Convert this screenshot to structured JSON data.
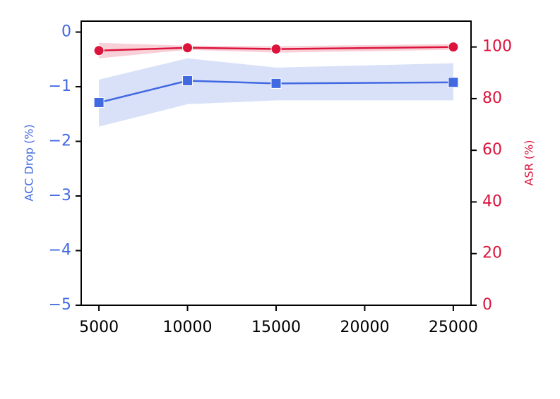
{
  "chart_data": {
    "type": "line",
    "x": [
      5000,
      10000,
      15000,
      25000
    ],
    "xlim": [
      4000,
      26000
    ],
    "xticks": [
      5000,
      10000,
      15000,
      20000,
      25000
    ],
    "ylabel": "ACC Drop (%)",
    "y2label": "ASR (%)",
    "ylim": [
      -5,
      0.2
    ],
    "yticks": [
      {
        "value": -5,
        "label": "−5"
      },
      {
        "value": -4,
        "label": "−4"
      },
      {
        "value": -3,
        "label": "−3"
      },
      {
        "value": -2,
        "label": "−2"
      },
      {
        "value": -1,
        "label": "−1"
      },
      0
    ],
    "y2lim": [
      0,
      110
    ],
    "y2ticks": [
      0,
      20,
      40,
      60,
      80,
      100
    ],
    "ycolor": "#4169e1",
    "y2color": "#dc143c",
    "series": [
      {
        "color": "#4169e1",
        "marker": "square",
        "axis": "y",
        "values": [
          -1.29,
          -0.89,
          -0.94,
          -0.92
        ],
        "lower": [
          -1.73,
          -1.32,
          -1.25,
          -1.25
        ],
        "upper": [
          -0.87,
          -0.48,
          -0.65,
          -0.57
        ]
      },
      {
        "color": "#dc143c",
        "marker": "circle",
        "axis": "y2",
        "values": [
          98.6,
          99.7,
          99.2,
          100
        ],
        "lower": [
          95.6,
          98.9,
          97.8,
          98.9
        ],
        "upper": [
          101.6,
          100.5,
          100.3,
          101.1
        ]
      }
    ]
  }
}
